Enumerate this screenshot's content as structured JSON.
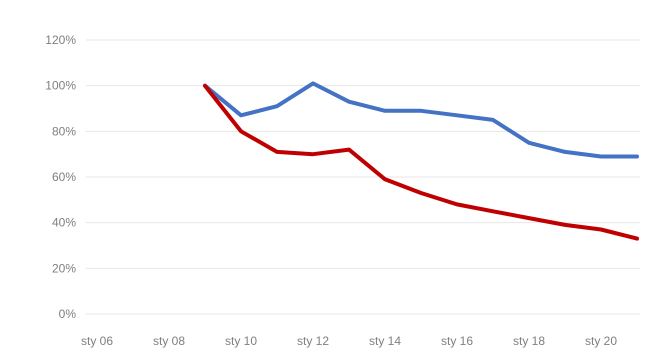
{
  "chart_data": {
    "type": "line",
    "title": "",
    "xlabel": "",
    "ylabel": "",
    "x_tick_labels": [
      "sty 06",
      "sty 08",
      "sty 10",
      "sty 12",
      "sty 14",
      "sty 16",
      "sty 18",
      "sty 20"
    ],
    "y_tick_labels": [
      "0%",
      "20%",
      "40%",
      "60%",
      "80%",
      "100%",
      "120%"
    ],
    "ylim": [
      0,
      120
    ],
    "y_unit": "%",
    "grid": "horizontal",
    "legend": "none",
    "x": [
      "sty 09",
      "sty 10",
      "sty 11",
      "sty 12",
      "sty 13",
      "sty 14",
      "sty 15",
      "sty 16",
      "sty 17",
      "sty 18",
      "sty 19",
      "sty 20",
      "sty 21"
    ],
    "series": [
      {
        "color": "#4472c4",
        "values": [
          100,
          87,
          91,
          101,
          93,
          89,
          89,
          87,
          85,
          75,
          71,
          69,
          69
        ]
      },
      {
        "color": "#c00000",
        "values": [
          100,
          80,
          71,
          70,
          72,
          59,
          53,
          48,
          45,
          42,
          39,
          37,
          33
        ]
      }
    ]
  }
}
